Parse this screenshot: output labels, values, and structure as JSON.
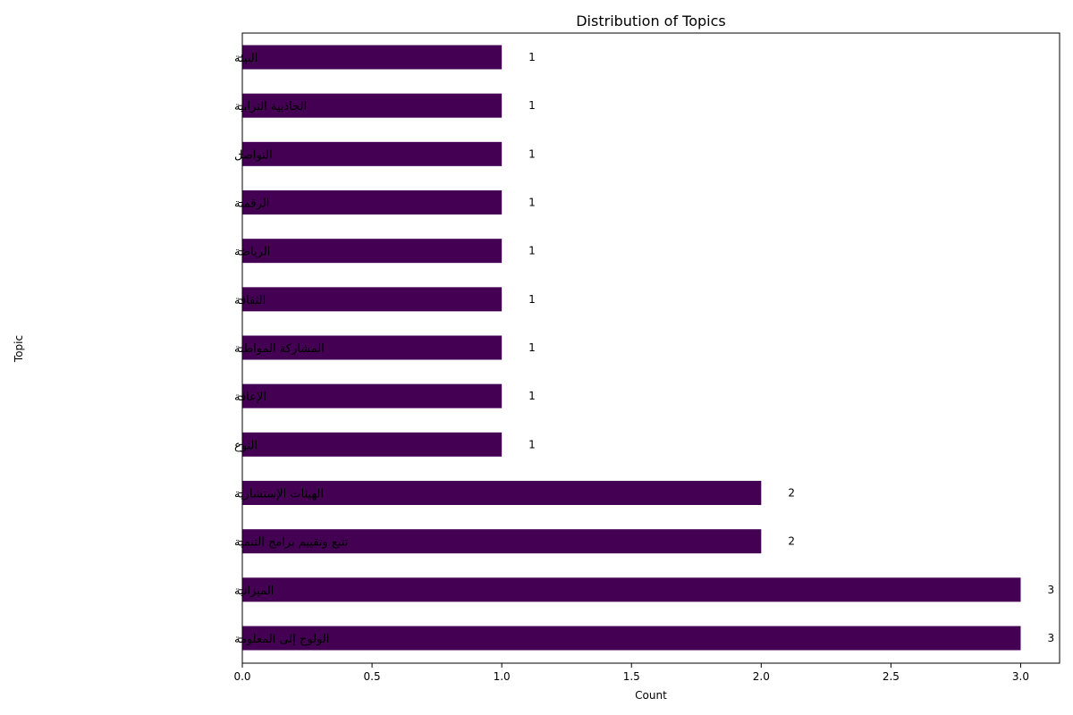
{
  "chart_data": {
    "type": "bar",
    "orientation": "horizontal",
    "title": "Distribution of Topics",
    "xlabel": "Count",
    "ylabel": "Topic",
    "xlim": [
      0,
      3.15
    ],
    "xticks": [
      "0.0",
      "0.5",
      "1.0",
      "1.5",
      "2.0",
      "2.5",
      "3.0"
    ],
    "categories": [
      "البيئة",
      "الجاذبية الترابية",
      "التواصل",
      "الرقمنة",
      "الرياضة",
      "الثقافة",
      "المشاركة المواطنة",
      "الإعاقة",
      "النوع",
      "الهيئات الإستشارية",
      "تتبع وتقييم برامج التنمية",
      "الميزانية",
      "الولوج إلى المعلومة"
    ],
    "values": [
      1,
      1,
      1,
      1,
      1,
      1,
      1,
      1,
      1,
      2,
      2,
      3,
      3
    ],
    "value_labels": [
      "1",
      "1",
      "1",
      "1",
      "1",
      "1",
      "1",
      "1",
      "1",
      "2",
      "2",
      "3",
      "3"
    ],
    "bar_color": "#440154",
    "grid": false,
    "legend": "none"
  }
}
